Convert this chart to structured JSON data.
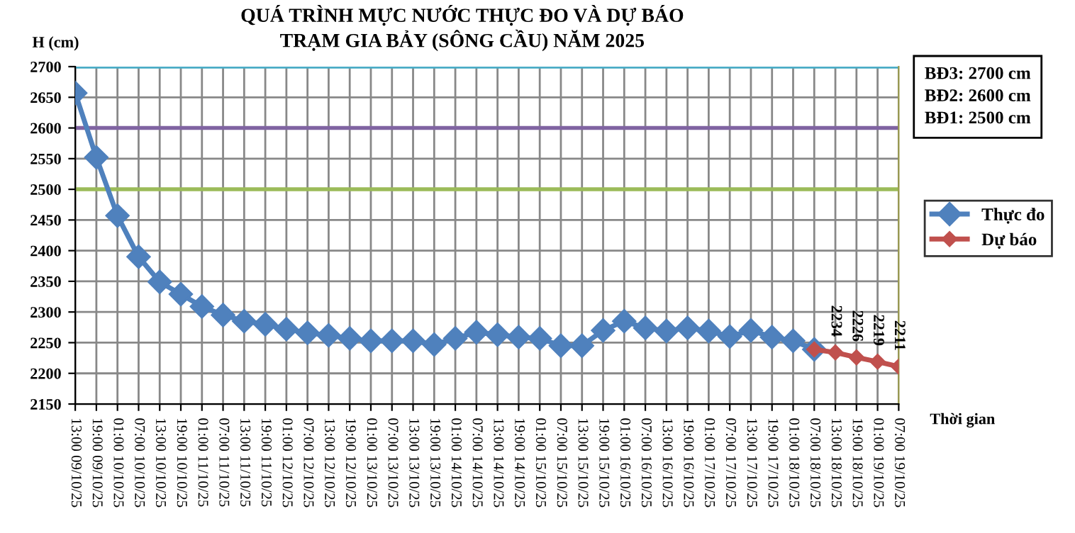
{
  "chart_data": {
    "type": "line",
    "title": "QUÁ TRÌNH MỰC NƯỚC THỰC ĐO VÀ DỰ BÁO\nTRẠM GIA BẢY (SÔNG CẦU) NĂM 2025",
    "ylabel": "H (cm)",
    "xlabel": "Thời gian",
    "categories": [
      "13:00 09/10/25",
      "19:00 09/10/25",
      "01:00 10/10/25",
      "07:00 10/10/25",
      "13:00 10/10/25",
      "19:00 10/10/25",
      "01:00 11/10/25",
      "07:00 11/10/25",
      "13:00 11/10/25",
      "19:00 11/10/25",
      "01:00 12/10/25",
      "07:00 12/10/25",
      "13:00 12/10/25",
      "19:00 12/10/25",
      "01:00 13/10/25",
      "07:00 13/10/25",
      "13:00 13/10/25",
      "19:00 13/10/25",
      "01:00 14/10/25",
      "07:00 14/10/25",
      "13:00 14/10/25",
      "19:00 14/10/25",
      "01:00 15/10/25",
      "07:00 15/10/25",
      "13:00 15/10/25",
      "19:00 15/10/25",
      "01:00 16/10/25",
      "07:00 16/10/25",
      "13:00 16/10/25",
      "19:00 16/10/25",
      "01:00 17/10/25",
      "07:00 17/10/25",
      "13:00 17/10/25",
      "19:00 17/10/25",
      "01:00 18/10/25",
      "07:00 18/10/25",
      "13:00 18/10/25",
      "19:00 18/10/25",
      "01:00 19/10/25",
      "07:00 19/10/25"
    ],
    "series": [
      {
        "name": "Thực đo",
        "color": "#4f81bd",
        "values": [
          2657,
          2552,
          2457,
          2390,
          2349,
          2329,
          2309,
          2295,
          2285,
          2280,
          2272,
          2266,
          2262,
          2257,
          2253,
          2253,
          2253,
          2247,
          2257,
          2267,
          2263,
          2259,
          2257,
          2245,
          2245,
          2270,
          2285,
          2274,
          2269,
          2274,
          2269,
          2260,
          2270,
          2259,
          2253,
          2239,
          null,
          null,
          null,
          null
        ]
      },
      {
        "name": "Dự báo",
        "color": "#c0504d",
        "values": [
          null,
          null,
          null,
          null,
          null,
          null,
          null,
          null,
          null,
          null,
          null,
          null,
          null,
          null,
          null,
          null,
          null,
          null,
          null,
          null,
          null,
          null,
          null,
          null,
          null,
          null,
          null,
          null,
          null,
          null,
          null,
          null,
          null,
          null,
          null,
          2239,
          2234,
          2226,
          2219,
          2211
        ],
        "value_labels": [
          null,
          null,
          null,
          null,
          null,
          null,
          null,
          null,
          null,
          null,
          null,
          null,
          null,
          null,
          null,
          null,
          null,
          null,
          null,
          null,
          null,
          null,
          null,
          null,
          null,
          null,
          null,
          null,
          null,
          null,
          null,
          null,
          null,
          null,
          null,
          null,
          "2234",
          "2226",
          "2219",
          "2211"
        ]
      }
    ],
    "ylim": [
      2150,
      2700
    ],
    "yticks": [
      2150,
      2200,
      2250,
      2300,
      2350,
      2400,
      2450,
      2500,
      2550,
      2600,
      2650,
      2700
    ],
    "ref_lines": [
      {
        "axis": "y",
        "value": 2700,
        "color": "#4bacc6"
      },
      {
        "axis": "y",
        "value": 2600,
        "color": "#8064a2"
      },
      {
        "axis": "y",
        "value": 2500,
        "color": "#9bbb59"
      }
    ],
    "annotations": [
      "BĐ3: 2700 cm\nBĐ2: 2600 cm\nBĐ1: 2500 cm"
    ],
    "grid": true,
    "legend": "right",
    "marker": "diamond",
    "line_style": "solid"
  }
}
